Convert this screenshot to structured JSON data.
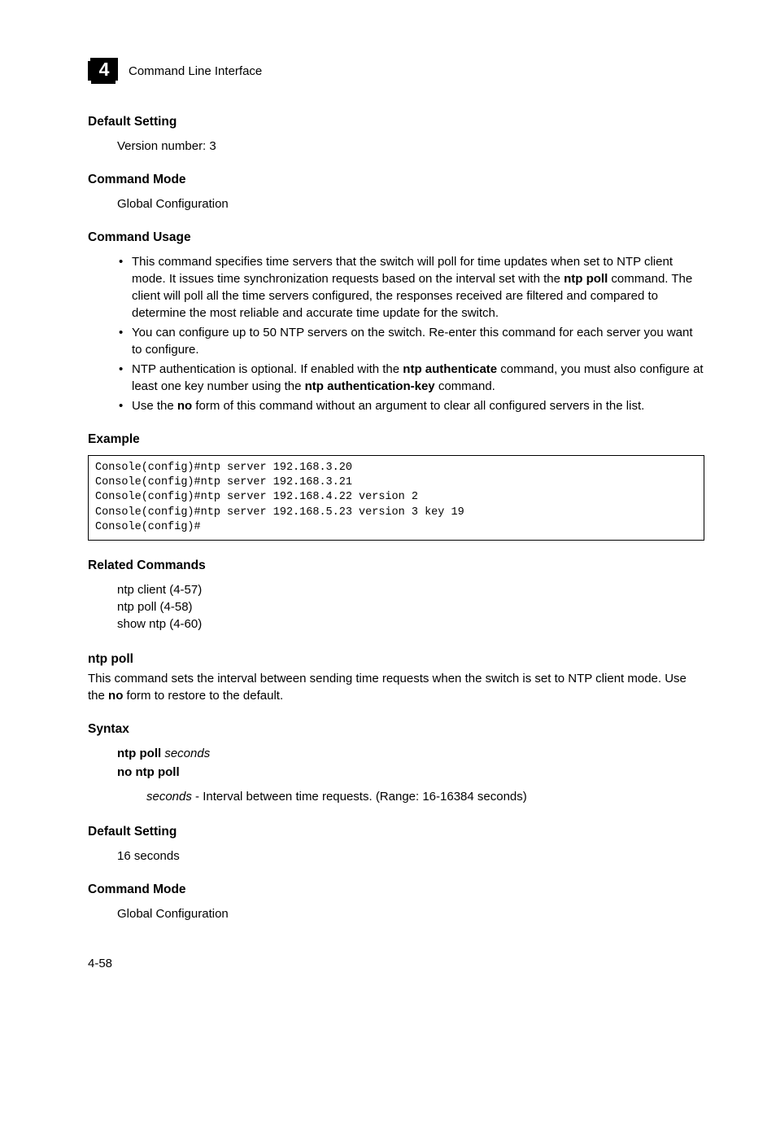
{
  "header": {
    "chapter_number": "4",
    "title": "Command Line Interface"
  },
  "sections": [
    {
      "heading": "Default Setting",
      "indent_text": "Version number: 3"
    },
    {
      "heading": "Command Mode",
      "indent_text": "Global Configuration"
    },
    {
      "heading": "Command Usage",
      "bullets_html": [
        "This command specifies time servers that the switch will poll for time updates when set to NTP client mode. It issues time synchronization requests based on the interval set with the <b>ntp poll</b> command. The client will poll all the time servers configured, the responses received are filtered and compared to determine the most reliable and accurate time update for the switch.",
        "You can configure up to 50 NTP servers on the switch. Re-enter this command for each server you want to configure.",
        "NTP authentication is optional. If enabled with the <b>ntp authenticate</b> command, you must also configure at least one key number using the <b>ntp authentication-key</b> command.",
        "Use the <b>no</b> form of this command without an argument to clear all configured servers in the list."
      ]
    }
  ],
  "example": {
    "heading": "Example",
    "code": "Console(config)#ntp server 192.168.3.20\nConsole(config)#ntp server 192.168.3.21\nConsole(config)#ntp server 192.168.4.22 version 2\nConsole(config)#ntp server 192.168.5.23 version 3 key 19\nConsole(config)#"
  },
  "related": {
    "heading": "Related Commands",
    "lines": [
      "ntp client (4-57)",
      "ntp poll (4-58)",
      "show ntp (4-60)"
    ]
  },
  "ntp_poll": {
    "heading": "ntp poll",
    "desc_html": "This command sets the interval between sending time requests when the switch is set to NTP client mode. Use the <b>no</b> form to restore to the default.",
    "syntax": {
      "heading": "Syntax",
      "line1_html": "<b>ntp poll</b> <i>seconds</i>",
      "line2_html": "<b>no ntp poll</b>",
      "param_html": "<i>seconds</i> - Interval between time requests. (Range: 16-16384 seconds)"
    },
    "default_setting": {
      "heading": "Default Setting",
      "text": "16 seconds"
    },
    "command_mode": {
      "heading": "Command Mode",
      "text": "Global Configuration"
    }
  },
  "page_number": "4-58"
}
